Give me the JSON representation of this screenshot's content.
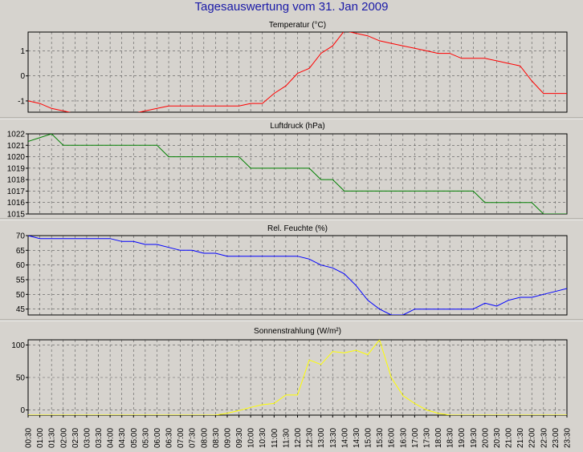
{
  "title": "Tagesauswertung vom 31. Jan 2009",
  "colors": {
    "temperature": "#ff0000",
    "pressure": "#008000",
    "humidity": "#0000ff",
    "radiation": "#ffff00",
    "background": "#d6d3ce"
  },
  "chart_data": [
    {
      "type": "line",
      "title": "Temperatur (°C)",
      "series": [
        {
          "color": "#ff0000",
          "x": [
            0.0,
            0.5,
            1.0,
            1.5,
            2.0,
            2.5,
            3.0,
            3.5,
            4.0,
            4.5,
            5.0,
            5.5,
            6.0,
            6.5,
            7.0,
            7.5,
            8.0,
            8.5,
            9.0,
            9.5,
            10.0,
            10.5,
            11.0,
            11.5,
            12.0,
            12.5,
            13.0,
            13.5,
            14.0,
            14.5,
            15.0,
            15.5,
            16.0,
            16.5,
            17.0,
            17.5,
            18.0,
            18.5,
            19.0,
            19.5,
            20.0,
            20.5,
            21.0,
            21.5,
            22.0,
            22.5,
            23.0,
            23.5
          ],
          "y": [
            -1.0,
            -1.0,
            -1.1,
            -1.3,
            -1.4,
            -1.5,
            -1.5,
            -1.5,
            -1.5,
            -1.5,
            -1.5,
            -1.4,
            -1.3,
            -1.2,
            -1.2,
            -1.2,
            -1.2,
            -1.2,
            -1.2,
            -1.2,
            -1.1,
            -1.1,
            -0.7,
            -0.4,
            0.1,
            0.3,
            0.9,
            1.2,
            1.8,
            1.7,
            1.6,
            1.4,
            1.3,
            1.2,
            1.1,
            1.0,
            0.9,
            0.9,
            0.7,
            0.7,
            0.7,
            0.6,
            0.5,
            0.4,
            -0.2,
            -0.7,
            -0.7,
            -0.7
          ]
        }
      ],
      "x_range": [
        0.5,
        23.5
      ],
      "ylim": [
        -1.45,
        1.75
      ],
      "yticks": [
        -1,
        0,
        1
      ],
      "grid": true
    },
    {
      "type": "line",
      "title": "Luftdruck (hPa)",
      "series": [
        {
          "color": "#008000",
          "x": [
            0.0,
            1.5,
            2.0,
            2.5,
            3.0,
            3.5,
            4.0,
            4.5,
            5.0,
            5.5,
            6.0,
            6.5,
            7.0,
            7.5,
            8.0,
            8.5,
            9.0,
            9.5,
            10.0,
            10.5,
            11.0,
            11.5,
            12.0,
            12.5,
            13.0,
            13.5,
            14.0,
            14.5,
            15.0,
            15.5,
            16.0,
            16.5,
            17.0,
            17.5,
            18.0,
            18.5,
            19.0,
            19.5,
            20.0,
            20.5,
            21.0,
            21.5,
            22.0,
            22.5,
            23.0,
            23.5
          ],
          "y": [
            1021,
            1022,
            1021,
            1021,
            1021,
            1021,
            1021,
            1021,
            1021,
            1021,
            1021,
            1020,
            1020,
            1020,
            1020,
            1020,
            1020,
            1020,
            1019,
            1019,
            1019,
            1019,
            1019,
            1019,
            1018,
            1018,
            1017,
            1017,
            1017,
            1017,
            1017,
            1017,
            1017,
            1017,
            1017,
            1017,
            1017,
            1017,
            1016,
            1016,
            1016,
            1016,
            1016,
            1015,
            1015,
            1015
          ]
        }
      ],
      "x_range": [
        0.5,
        23.5
      ],
      "ylim": [
        1015,
        1022
      ],
      "yticks": [
        1015,
        1016,
        1017,
        1018,
        1019,
        1020,
        1021,
        1022
      ],
      "grid": true
    },
    {
      "type": "line",
      "title": "Rel. Feuchte (%)",
      "series": [
        {
          "color": "#0000ff",
          "x": [
            0.5,
            1.0,
            1.5,
            2.0,
            2.5,
            3.0,
            3.5,
            4.0,
            4.5,
            5.0,
            5.5,
            6.0,
            6.5,
            7.0,
            7.5,
            8.0,
            8.5,
            9.0,
            9.5,
            10.0,
            10.5,
            11.0,
            11.5,
            12.0,
            12.5,
            13.0,
            13.5,
            14.0,
            14.5,
            15.0,
            15.5,
            16.0,
            16.5,
            17.0,
            17.5,
            18.0,
            18.5,
            19.0,
            19.5,
            20.0,
            20.5,
            21.0,
            21.5,
            22.0,
            22.5,
            23.0,
            23.5
          ],
          "y": [
            70,
            69,
            69,
            69,
            69,
            69,
            69,
            69,
            68,
            68,
            67,
            67,
            66,
            65,
            65,
            64,
            64,
            63,
            63,
            63,
            63,
            63,
            63,
            63,
            62,
            60,
            59,
            57,
            53,
            48,
            45,
            43,
            43,
            45,
            45,
            45,
            45,
            45,
            45,
            47,
            46,
            48,
            49,
            49,
            50,
            51,
            52
          ]
        }
      ],
      "x_range": [
        0.5,
        23.5
      ],
      "ylim": [
        43,
        70
      ],
      "yticks": [
        45,
        50,
        55,
        60,
        65,
        70
      ],
      "grid": true
    },
    {
      "type": "line",
      "title": "Sonnenstrahlung (W/m²)",
      "series": [
        {
          "color": "#ffff00",
          "x": [
            0.5,
            1.0,
            1.5,
            2.0,
            2.5,
            3.0,
            3.5,
            4.0,
            4.5,
            5.0,
            5.5,
            6.0,
            6.5,
            7.0,
            7.5,
            8.0,
            8.5,
            9.0,
            9.5,
            10.0,
            10.5,
            11.0,
            11.5,
            12.0,
            12.5,
            13.0,
            13.5,
            14.0,
            14.5,
            15.0,
            15.5,
            16.0,
            16.5,
            17.0,
            17.5,
            18.0,
            18.5,
            19.0,
            19.5,
            20.0,
            20.5,
            21.0,
            21.5,
            22.0,
            22.5,
            23.0,
            23.5
          ],
          "y": [
            -8,
            -8,
            -8,
            -8,
            -8,
            -8,
            -8,
            -8,
            -8,
            -8,
            -8,
            -8,
            -8,
            -8,
            -8,
            -8,
            -8,
            -5,
            -1,
            4,
            8,
            10,
            23,
            23,
            77,
            70,
            90,
            88,
            92,
            85,
            108,
            50,
            22,
            10,
            0,
            -5,
            -8,
            -8,
            -8,
            -8,
            -8,
            -8,
            -8,
            -8,
            -8,
            -8,
            -8
          ]
        }
      ],
      "x_range": [
        0.5,
        23.5
      ],
      "ylim": [
        -8,
        108
      ],
      "yticks": [
        0,
        50,
        100
      ],
      "grid": true
    }
  ],
  "x_labels": [
    "00:30",
    "01:00",
    "01:30",
    "02:00",
    "02:30",
    "03:00",
    "03:30",
    "04:00",
    "04:30",
    "05:00",
    "05:30",
    "06:00",
    "06:30",
    "07:00",
    "07:30",
    "08:00",
    "08:30",
    "09:00",
    "09:30",
    "10:00",
    "10:30",
    "11:00",
    "11:30",
    "12:00",
    "12:30",
    "13:00",
    "13:30",
    "14:00",
    "14:30",
    "15:00",
    "15:30",
    "16:00",
    "16:30",
    "17:00",
    "17:30",
    "18:00",
    "18:30",
    "19:00",
    "19:30",
    "20:00",
    "20:30",
    "21:00",
    "21:30",
    "22:00",
    "22:30",
    "23:00",
    "23:30"
  ]
}
